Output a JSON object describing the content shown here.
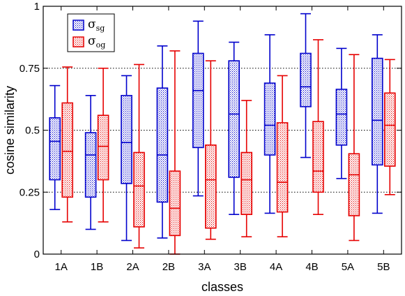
{
  "chart_data": {
    "type": "boxplot",
    "xlabel": "classes",
    "ylabel": "cosine similarity",
    "ylim": [
      0,
      1
    ],
    "yticks": [
      "0",
      "0.25",
      "0.5",
      "0.75",
      "1"
    ],
    "grid": "horizontal dotted lines at 0.25, 0.5, 0.75",
    "legend_position": "top-left",
    "categories": [
      "1A",
      "1B",
      "2A",
      "2B",
      "3A",
      "3B",
      "4A",
      "4B",
      "5A",
      "5B"
    ],
    "series": [
      {
        "name": "σ_sg",
        "symbol": "σ",
        "subscript": "sg",
        "color": "#0000cc",
        "boxes": [
          {
            "min": 0.18,
            "q1": 0.3,
            "median": 0.455,
            "q3": 0.55,
            "max": 0.68
          },
          {
            "min": 0.1,
            "q1": 0.23,
            "median": 0.4,
            "q3": 0.49,
            "max": 0.64
          },
          {
            "min": 0.055,
            "q1": 0.285,
            "median": 0.45,
            "q3": 0.64,
            "max": 0.72
          },
          {
            "min": 0.065,
            "q1": 0.21,
            "median": 0.4,
            "q3": 0.67,
            "max": 0.84
          },
          {
            "min": 0.235,
            "q1": 0.43,
            "median": 0.66,
            "q3": 0.81,
            "max": 0.94
          },
          {
            "min": 0.16,
            "q1": 0.31,
            "median": 0.565,
            "q3": 0.78,
            "max": 0.855
          },
          {
            "min": 0.165,
            "q1": 0.4,
            "median": 0.52,
            "q3": 0.69,
            "max": 0.885
          },
          {
            "min": 0.39,
            "q1": 0.595,
            "median": 0.675,
            "q3": 0.81,
            "max": 0.97
          },
          {
            "min": 0.305,
            "q1": 0.44,
            "median": 0.565,
            "q3": 0.665,
            "max": 0.83
          },
          {
            "min": 0.165,
            "q1": 0.36,
            "median": 0.54,
            "q3": 0.79,
            "max": 0.885
          }
        ]
      },
      {
        "name": "σ_og",
        "symbol": "σ",
        "subscript": "og",
        "color": "#e60000",
        "boxes": [
          {
            "min": 0.13,
            "q1": 0.23,
            "median": 0.415,
            "q3": 0.61,
            "max": 0.755
          },
          {
            "min": 0.13,
            "q1": 0.3,
            "median": 0.435,
            "q3": 0.56,
            "max": 0.75
          },
          {
            "min": 0.025,
            "q1": 0.11,
            "median": 0.275,
            "q3": 0.41,
            "max": 0.765
          },
          {
            "min": 0.0,
            "q1": 0.075,
            "median": 0.185,
            "q3": 0.335,
            "max": 0.82
          },
          {
            "min": 0.06,
            "q1": 0.105,
            "median": 0.3,
            "q3": 0.44,
            "max": 0.78
          },
          {
            "min": 0.07,
            "q1": 0.16,
            "median": 0.3,
            "q3": 0.41,
            "max": 0.62
          },
          {
            "min": 0.07,
            "q1": 0.17,
            "median": 0.29,
            "q3": 0.53,
            "max": 0.72
          },
          {
            "min": 0.16,
            "q1": 0.25,
            "median": 0.335,
            "q3": 0.535,
            "max": 0.865
          },
          {
            "min": 0.055,
            "q1": 0.155,
            "median": 0.32,
            "q3": 0.405,
            "max": 0.805
          },
          {
            "min": 0.24,
            "q1": 0.355,
            "median": 0.52,
            "q3": 0.65,
            "max": 0.785
          }
        ]
      }
    ]
  }
}
